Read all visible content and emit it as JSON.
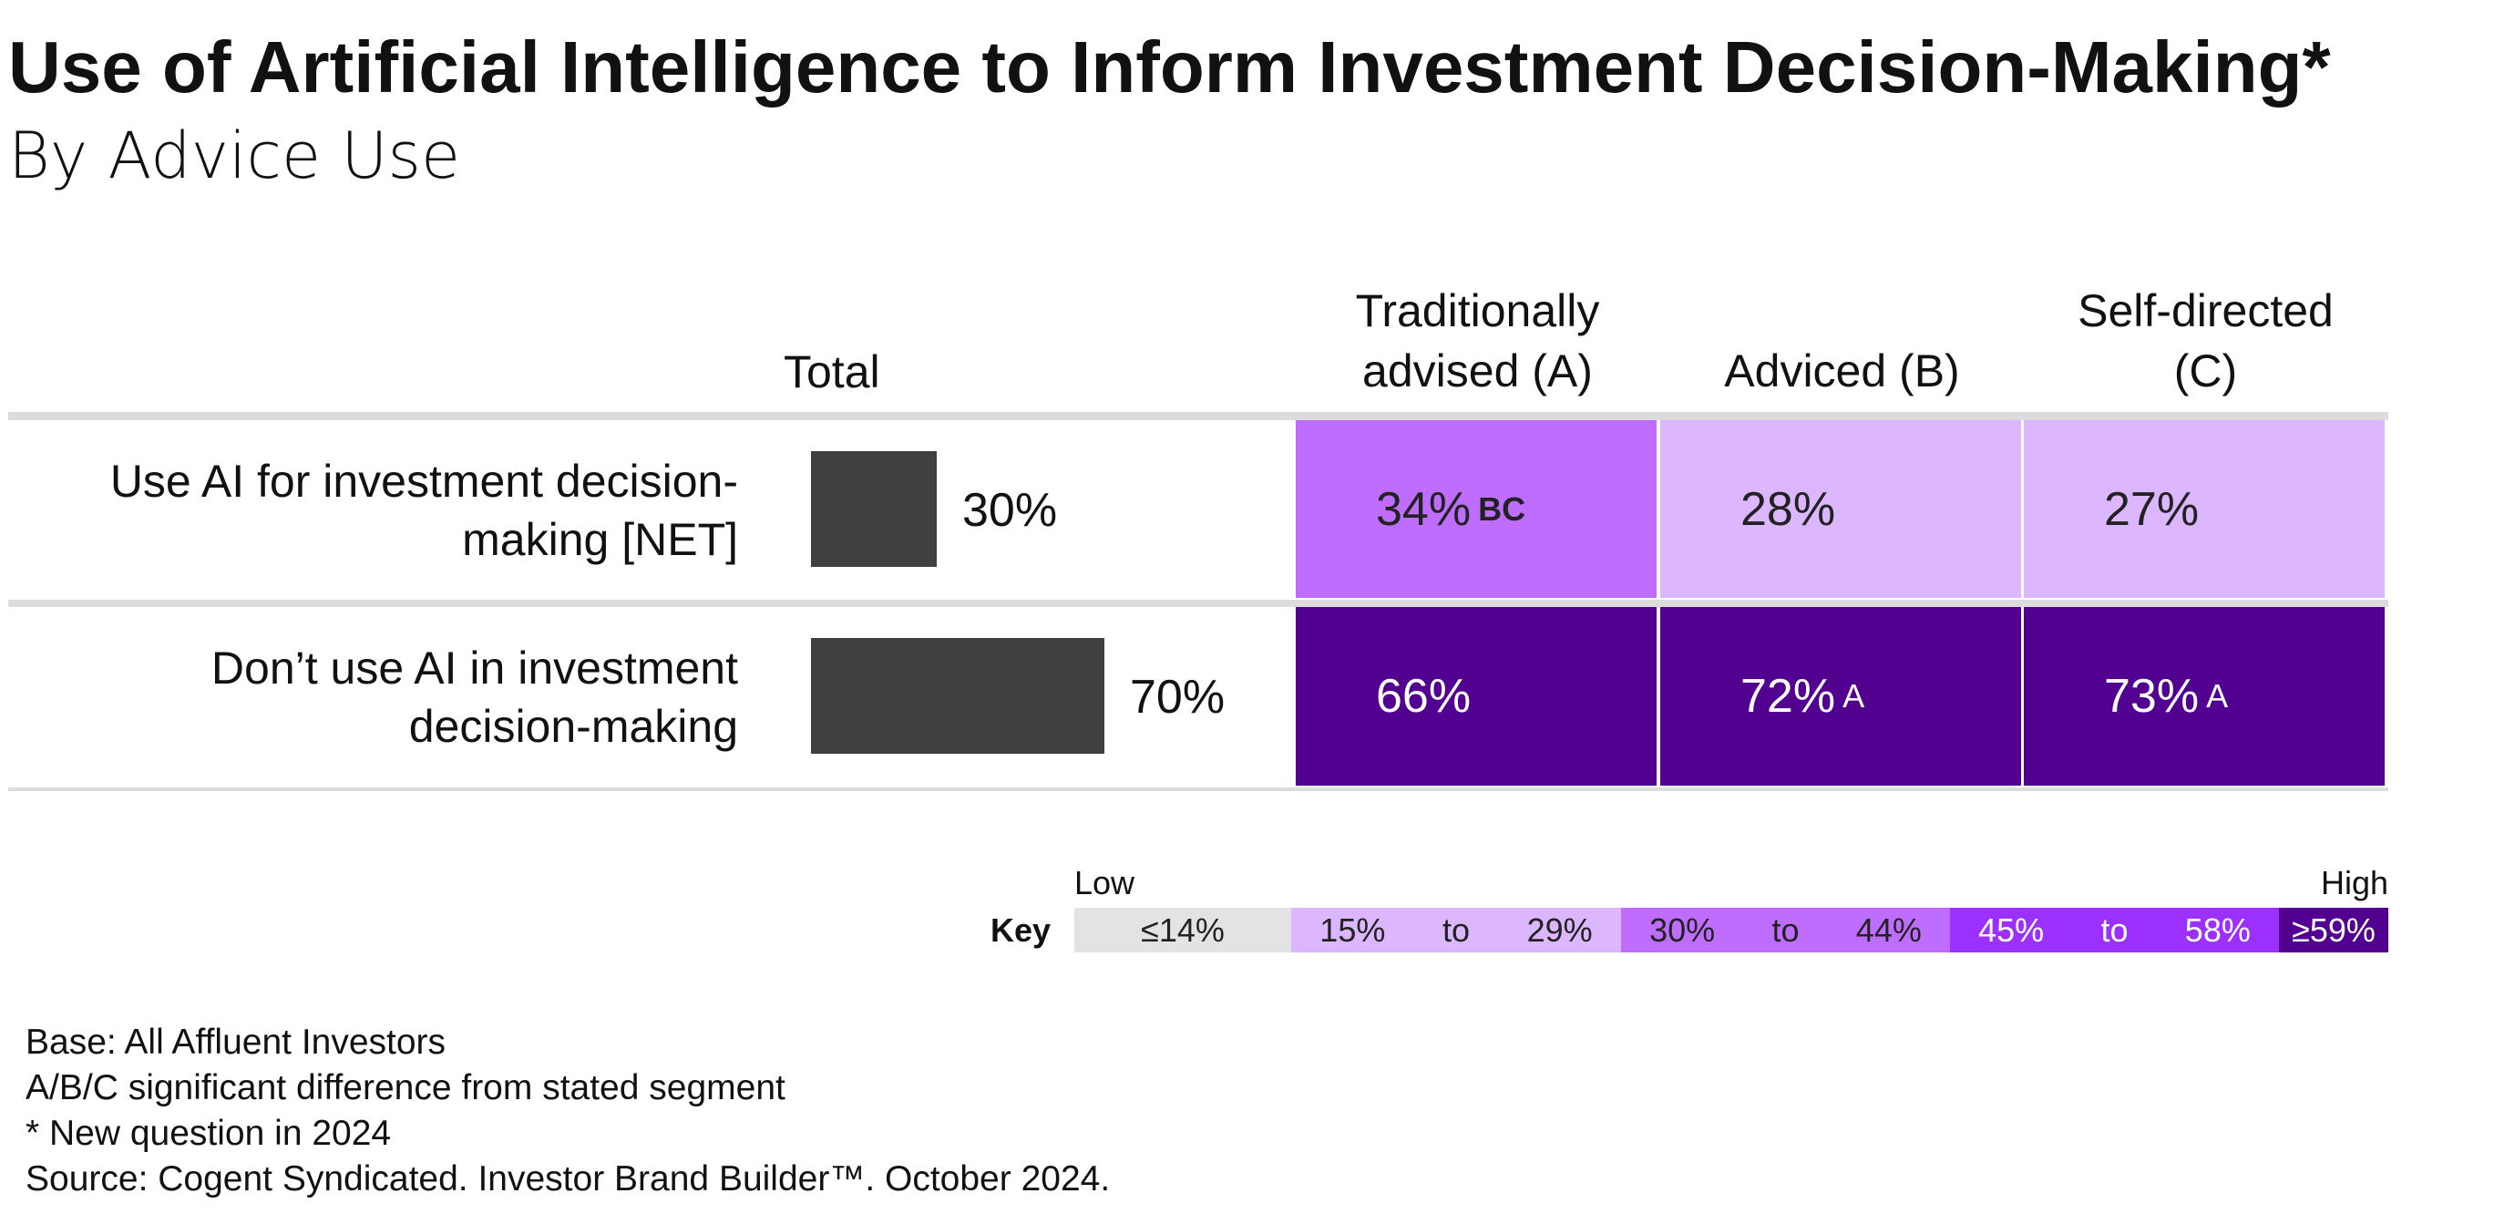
{
  "chart_data": {
    "type": "heatmap-table",
    "title": "Use of Artificial Intelligence to Inform Investment Decision-Making*",
    "subtitle": "By Advice Use",
    "total_header": "Total",
    "rows": [
      "Use AI for investment decision-making [NET]",
      "Don’t use AI in investment decision-making"
    ],
    "total": {
      "color": "#404040",
      "values": [
        30,
        70
      ],
      "value_labels": [
        "30%",
        "70%"
      ]
    },
    "series": [
      {
        "name": "Traditionally advised (A)",
        "values": [
          34,
          66
        ],
        "value_labels": [
          "34%",
          "66%"
        ],
        "significance": [
          "BC",
          null
        ]
      },
      {
        "name": "Adviced (B)",
        "values": [
          28,
          72
        ],
        "value_labels": [
          "28%",
          "72%"
        ],
        "significance": [
          null,
          "A"
        ]
      },
      {
        "name": "Self-directed (C)",
        "values": [
          27,
          73
        ],
        "value_labels": [
          "27%",
          "73%"
        ],
        "significance": [
          null,
          "A"
        ]
      }
    ],
    "key": {
      "label": "Key",
      "low": "Low",
      "high": "High",
      "bins": [
        {
          "max": 14,
          "labels": [
            "≤14%"
          ],
          "color": "#e3e3e3",
          "text_color": "#222222"
        },
        {
          "min": 15,
          "max": 29,
          "labels": [
            "15%",
            "to",
            "29%"
          ],
          "color": "#dcb6ff",
          "text_color": "#222222"
        },
        {
          "min": 30,
          "max": 44,
          "labels": [
            "30%",
            "to",
            "44%"
          ],
          "color": "#bf6dff",
          "text_color": "#222222"
        },
        {
          "min": 45,
          "max": 58,
          "labels": [
            "45%",
            "to",
            "58%"
          ],
          "color": "#9b30ff",
          "text_color": "#ffffff"
        },
        {
          "min": 59,
          "labels": [
            "≥59%"
          ],
          "color": "#52008f",
          "text_color": "#ffffff"
        }
      ]
    },
    "footnotes": [
      "Base: All Affluent Investors",
      "A/B/C significant difference from stated segment",
      "* New question in 2024",
      "Source: Cogent Syndicated. Investor Brand Builder™. October 2024."
    ]
  }
}
